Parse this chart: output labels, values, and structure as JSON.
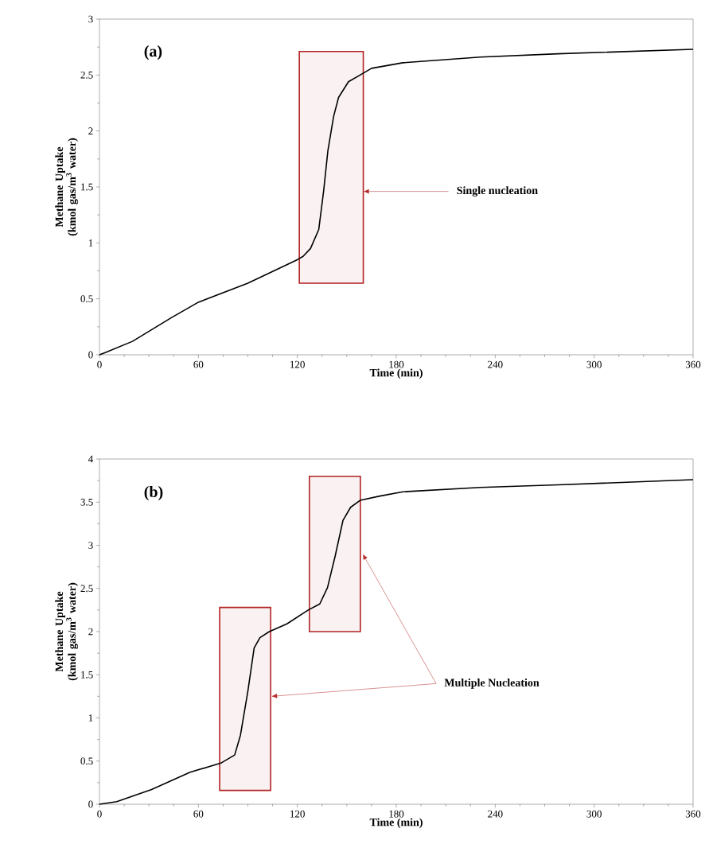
{
  "chart_data": [
    {
      "type": "line",
      "xlabel": "Time (min)",
      "ylabel": "Methane Uptake (kmol gas/m$^{3}$ water)",
      "xlim": [
        0,
        360
      ],
      "ylim": [
        0,
        3
      ],
      "xticks": [
        0,
        60,
        120,
        180,
        240,
        300,
        360
      ],
      "yticks": [
        0,
        0.5,
        1,
        1.5,
        2,
        2.5,
        3
      ],
      "series": [
        {
          "color": "#000000",
          "x": [
            0,
            3.5,
            20,
            43.4,
            60,
            90,
            120,
            123.5,
            128,
            133,
            136,
            138.5,
            142,
            145,
            151,
            158,
            165,
            184,
            231,
            278,
            360
          ],
          "values": [
            0,
            0.02,
            0.12,
            0.33,
            0.47,
            0.64,
            0.85,
            0.88,
            0.95,
            1.12,
            1.47,
            1.82,
            2.13,
            2.3,
            2.44,
            2.5,
            2.56,
            2.61,
            2.66,
            2.69,
            2.73
          ]
        }
      ],
      "bands": [
        {
          "axis": "x",
          "from": 121.2,
          "to": 160,
          "color": "#b22222"
        }
      ],
      "annotations": [
        "(a)",
        {
          "text": "Single nucleation",
          "x": 160,
          "y": 1.46
        }
      ]
    },
    {
      "type": "line",
      "xlabel": "Time (min)",
      "ylabel": "Methane Uptake (kmol gas/m$^{3}$ water)",
      "xlim": [
        0,
        360
      ],
      "ylim": [
        0,
        4
      ],
      "xticks": [
        0,
        60,
        120,
        180,
        240,
        300,
        360
      ],
      "yticks": [
        0,
        0.5,
        1,
        1.5,
        2,
        2.5,
        3,
        3.5,
        4
      ],
      "series": [
        {
          "color": "#000000",
          "x": [
            0,
            10.5,
            31.6,
            55,
            74,
            82,
            85.5,
            90,
            93.8,
            97.3,
            103,
            113.7,
            126.6,
            133.6,
            138.3,
            143,
            147.7,
            152.3,
            158,
            170,
            184,
            231,
            278,
            360
          ],
          "values": [
            0,
            0.03,
            0.17,
            0.37,
            0.48,
            0.57,
            0.8,
            1.31,
            1.81,
            1.93,
            2,
            2.09,
            2.25,
            2.32,
            2.51,
            2.88,
            3.29,
            3.44,
            3.52,
            3.57,
            3.62,
            3.67,
            3.7,
            3.76
          ]
        }
      ],
      "bands": [
        {
          "axis": "x",
          "from": 72.9,
          "to": 103.8,
          "color": "#b22222"
        },
        {
          "axis": "x",
          "from": 127.3,
          "to": 158.2,
          "color": "#b22222"
        }
      ],
      "annotations": [
        "(b)",
        {
          "text": "Multiple Nucleation",
          "x": 104.3,
          "y": 1.25
        }
      ]
    }
  ]
}
